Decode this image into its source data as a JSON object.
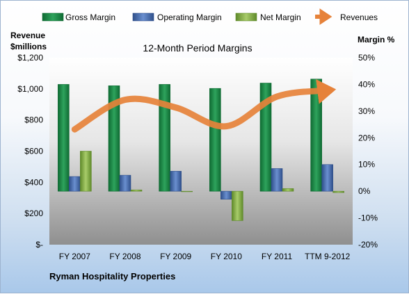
{
  "chart_data": {
    "type": "bar",
    "title": "12-Month Period Margins",
    "company": "Ryman Hospitality Properties",
    "categories": [
      "FY 2007",
      "FY 2008",
      "FY 2009",
      "FY 2010",
      "FY 2011",
      "TTM 9-2012"
    ],
    "left_axis": {
      "label_line1": "Revenue",
      "label_line2": "$millions",
      "ticks": [
        "$1,200",
        "$1,000",
        "$800",
        "$600",
        "$400",
        "$200",
        "$-"
      ],
      "range": [
        0,
        1200
      ]
    },
    "right_axis": {
      "label": "Margin %",
      "ticks": [
        "50%",
        "40%",
        "30%",
        "20%",
        "10%",
        "0%",
        "-10%",
        "-20%"
      ],
      "range": [
        -20,
        50
      ]
    },
    "series": [
      {
        "name": "Gross Margin",
        "axis": "right",
        "type": "bar",
        "color": "#1f8a4a",
        "values": [
          40,
          39.5,
          40,
          38.5,
          40.5,
          42
        ]
      },
      {
        "name": "Operating Margin",
        "axis": "right",
        "type": "bar",
        "color": "#4a6fb0",
        "values": [
          5.5,
          6,
          7.5,
          -3,
          8.5,
          10
        ]
      },
      {
        "name": "Net Margin",
        "axis": "right",
        "type": "bar",
        "color": "#8db050",
        "values": [
          15,
          0.5,
          0,
          -11,
          1,
          -0.5
        ]
      },
      {
        "name": "Revenues",
        "axis": "left",
        "type": "line",
        "color": "#e6823a",
        "values": [
          740,
          930,
          880,
          760,
          950,
          990
        ]
      }
    ],
    "grid": false,
    "legend": "top"
  }
}
